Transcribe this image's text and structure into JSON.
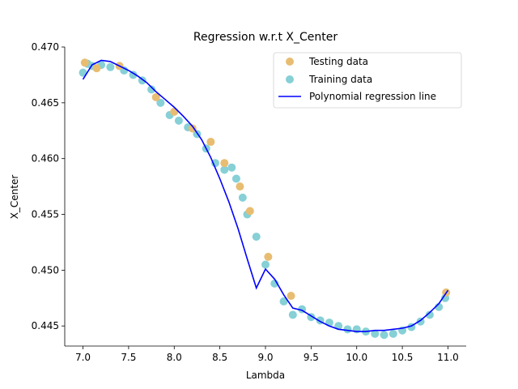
{
  "chart_data": {
    "type": "scatter",
    "title": "Regression w.r.t X_Center",
    "xlabel": "Lambda",
    "ylabel": "X_Center",
    "xlim": [
      6.8,
      11.2
    ],
    "ylim": [
      0.4432,
      0.47
    ],
    "xticks": [
      "7.0",
      "7.5",
      "8.0",
      "8.5",
      "9.0",
      "9.5",
      "10.0",
      "10.5",
      "11.0"
    ],
    "yticks": [
      "0.445",
      "0.450",
      "0.455",
      "0.460",
      "0.465",
      "0.470"
    ],
    "grid": false,
    "legend_position": "top-right",
    "series": [
      {
        "name": "Testing data",
        "kind": "scatter",
        "color": "#e8bd72",
        "x": [
          7.02,
          7.15,
          7.4,
          7.8,
          8.0,
          8.2,
          8.4,
          8.55,
          8.72,
          8.83,
          9.03,
          9.28,
          10.98
        ],
        "y": [
          0.4686,
          0.4681,
          0.4683,
          0.4655,
          0.4642,
          0.4627,
          0.4615,
          0.4596,
          0.4575,
          0.4553,
          0.4512,
          0.4477,
          0.448
        ]
      },
      {
        "name": "Training data",
        "kind": "scatter",
        "color": "#86d0d6",
        "x": [
          7.0,
          7.05,
          7.1,
          7.2,
          7.3,
          7.45,
          7.55,
          7.65,
          7.75,
          7.85,
          7.95,
          8.05,
          8.15,
          8.25,
          8.35,
          8.45,
          8.55,
          8.63,
          8.68,
          8.75,
          8.8,
          8.9,
          9.0,
          9.1,
          9.2,
          9.3,
          9.4,
          9.5,
          9.6,
          9.7,
          9.8,
          9.9,
          10.0,
          10.1,
          10.2,
          10.3,
          10.4,
          10.5,
          10.6,
          10.7,
          10.8,
          10.9,
          10.97
        ],
        "y": [
          0.4677,
          0.4685,
          0.4683,
          0.4684,
          0.4682,
          0.4679,
          0.4675,
          0.467,
          0.4662,
          0.465,
          0.4639,
          0.4634,
          0.4628,
          0.4622,
          0.4609,
          0.4596,
          0.459,
          0.4592,
          0.4582,
          0.4565,
          0.455,
          0.453,
          0.4505,
          0.4488,
          0.4472,
          0.446,
          0.4465,
          0.4458,
          0.4455,
          0.4453,
          0.445,
          0.4447,
          0.4447,
          0.4445,
          0.4443,
          0.4442,
          0.4443,
          0.4446,
          0.4449,
          0.4454,
          0.446,
          0.4467,
          0.4475
        ]
      },
      {
        "name": "Polynomial regression line",
        "kind": "line",
        "color": "#0000ff",
        "x": [
          7.0,
          7.1,
          7.2,
          7.3,
          7.4,
          7.5,
          7.6,
          7.7,
          7.8,
          7.9,
          8.0,
          8.1,
          8.2,
          8.3,
          8.4,
          8.5,
          8.6,
          8.7,
          8.8,
          8.9,
          9.0,
          9.1,
          9.2,
          9.3,
          9.4,
          9.5,
          9.6,
          9.7,
          9.8,
          9.9,
          10.0,
          10.1,
          10.2,
          10.3,
          10.4,
          10.5,
          10.6,
          10.7,
          10.8,
          10.9,
          11.0
        ],
        "y": [
          0.4671,
          0.4684,
          0.4688,
          0.4687,
          0.4683,
          0.4679,
          0.4674,
          0.4668,
          0.466,
          0.4653,
          0.4646,
          0.4638,
          0.4629,
          0.4617,
          0.4601,
          0.4582,
          0.4561,
          0.4537,
          0.451,
          0.4484,
          0.4501,
          0.4492,
          0.4478,
          0.4466,
          0.4464,
          0.4459,
          0.4454,
          0.445,
          0.4447,
          0.4446,
          0.4445,
          0.4445,
          0.4446,
          0.4446,
          0.4447,
          0.4448,
          0.445,
          0.4455,
          0.4462,
          0.447,
          0.4482
        ]
      }
    ]
  }
}
